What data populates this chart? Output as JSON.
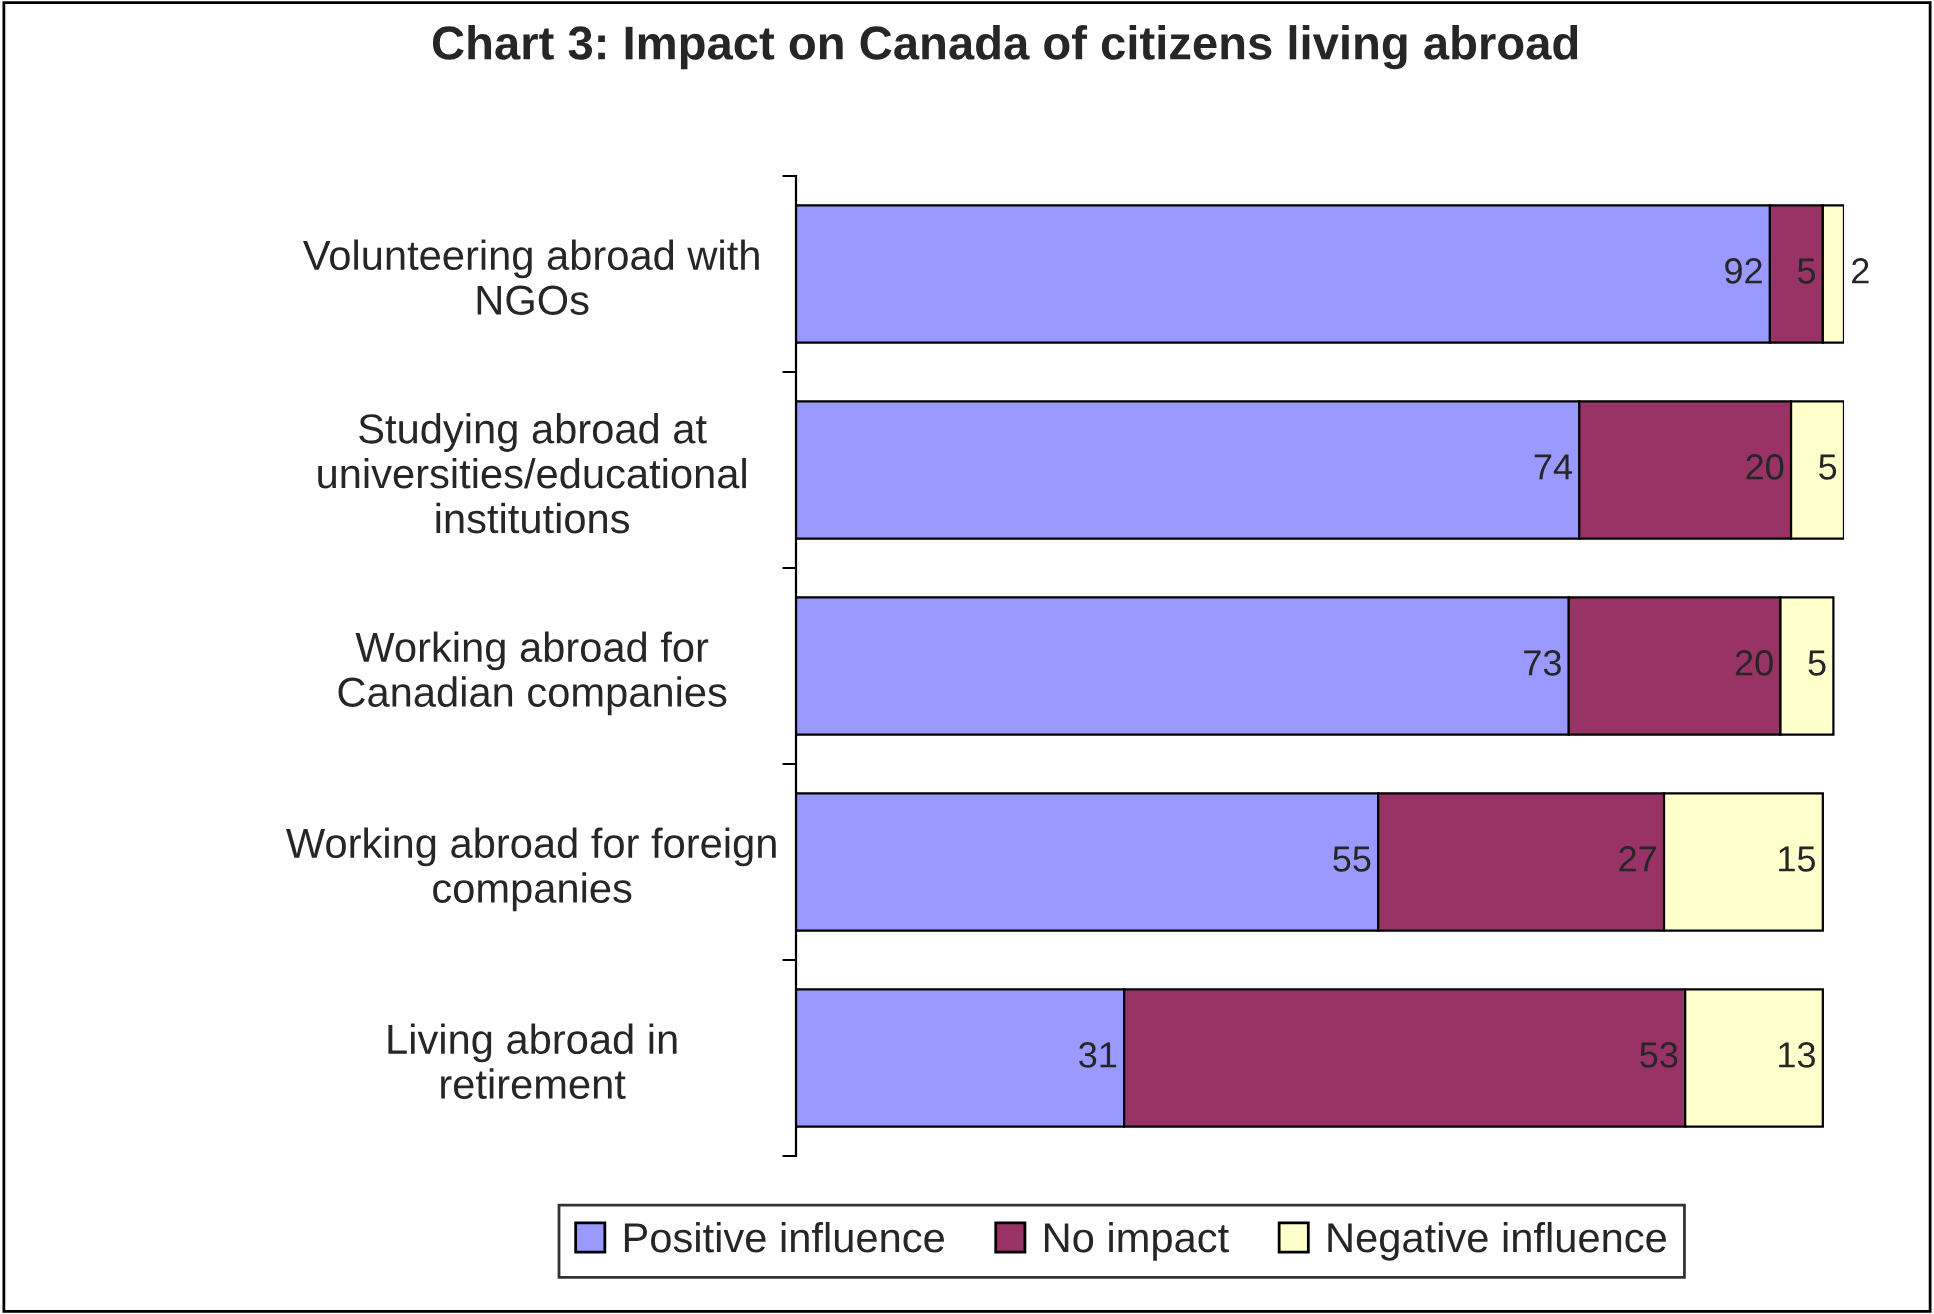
{
  "chart_data": {
    "type": "bar",
    "orientation": "horizontal",
    "stacked": true,
    "title": "Chart 3: Impact on Canada of citizens living abroad",
    "categories": [
      "Volunteering abroad with NGOs",
      "Studying abroad at universities/educational institutions",
      "Working abroad for Canadian companies",
      "Working abroad for foreign companies",
      "Living abroad in retirement"
    ],
    "series": [
      {
        "name": "Positive influence",
        "color": "#9999ff",
        "values": [
          92,
          74,
          73,
          55,
          31
        ]
      },
      {
        "name": "No impact",
        "color": "#993366",
        "values": [
          5,
          20,
          20,
          27,
          53
        ]
      },
      {
        "name": "Negative influence",
        "color": "#ffffcc",
        "values": [
          2,
          5,
          5,
          15,
          13
        ]
      }
    ],
    "data_labels": true,
    "legend": "bottom",
    "grid": false,
    "tick_labels": "y"
  }
}
